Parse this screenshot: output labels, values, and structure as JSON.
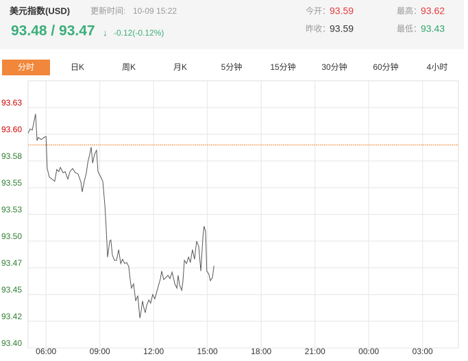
{
  "header": {
    "title": "美元指数(USD)",
    "update_label": "更新时间:",
    "update_time": "10-09 15:22",
    "price": "93.48 / 93.47",
    "arrow": "↓",
    "change": "-0.12(-0.12%)",
    "quotes": [
      {
        "label": "今开：",
        "value": 93.59,
        "color": "#e4393c"
      },
      {
        "label": "最高：",
        "value": 93.62,
        "color": "#e4393c"
      },
      {
        "label": "昨收：",
        "value": 93.59,
        "color": "#333333"
      },
      {
        "label": "最低：",
        "value": 93.43,
        "color": "#2fa46d"
      }
    ]
  },
  "tabs": {
    "items": [
      "分时",
      "日K",
      "周K",
      "月K",
      "5分钟",
      "15分钟",
      "30分钟",
      "60分钟",
      "4小时"
    ],
    "active": 0
  },
  "chart_data": {
    "type": "line",
    "color": "#555555",
    "reference_color": "#f0873a",
    "up_color": "#cc0000",
    "down_color": "#2e7d32",
    "grid": true,
    "xlim": [
      "05:00",
      "05:00"
    ],
    "xticks": [
      "06:00",
      "09:00",
      "12:00",
      "15:00",
      "18:00",
      "21:00",
      "00:00",
      "03:00"
    ],
    "ylim": [
      93.4,
      93.65
    ],
    "yticks": [
      {
        "value": 93.4,
        "label": "93.40"
      },
      {
        "value": 93.425,
        "label": "93.42"
      },
      {
        "value": 93.45,
        "label": "93.45"
      },
      {
        "value": 93.475,
        "label": "93.47"
      },
      {
        "value": 93.5,
        "label": "93.50"
      },
      {
        "value": 93.525,
        "label": "93.53"
      },
      {
        "value": 93.55,
        "label": "93.55"
      },
      {
        "value": 93.575,
        "label": "93.58"
      },
      {
        "value": 93.6,
        "label": "93.60"
      },
      {
        "value": 93.625,
        "label": "93.63"
      }
    ],
    "x": [
      "05:00",
      "05:07",
      "05:14",
      "05:25",
      "05:30",
      "05:34",
      "05:44",
      "05:53",
      "06:00",
      "06:04",
      "06:11",
      "06:20",
      "06:29",
      "06:36",
      "06:43",
      "06:48",
      "06:57",
      "07:04",
      "07:13",
      "07:20",
      "07:29",
      "07:38",
      "07:47",
      "07:57",
      "08:01",
      "08:08",
      "08:15",
      "08:20",
      "08:26",
      "08:31",
      "08:36",
      "08:42",
      "08:49",
      "08:54",
      "09:03",
      "09:10",
      "09:17",
      "09:21",
      "09:26",
      "09:33",
      "09:37",
      "09:42",
      "09:49",
      "09:56",
      "10:03",
      "10:10",
      "10:16",
      "10:23",
      "10:30",
      "10:37",
      "10:42",
      "10:46",
      "10:53",
      "11:00",
      "11:07",
      "11:14",
      "11:18",
      "11:23",
      "11:27",
      "11:32",
      "11:37",
      "11:44",
      "11:50",
      "11:57",
      "12:04",
      "12:11",
      "12:18",
      "12:23",
      "12:27",
      "12:34",
      "12:41",
      "12:48",
      "12:55",
      "13:02",
      "13:06",
      "13:11",
      "13:18",
      "13:22",
      "13:27",
      "13:34",
      "13:38",
      "13:43",
      "13:50",
      "13:57",
      "14:03",
      "14:10",
      "14:17",
      "14:24",
      "14:31",
      "14:38",
      "14:45",
      "14:49",
      "14:54",
      "14:58",
      "15:05",
      "15:10",
      "15:17",
      "15:22"
    ],
    "values": [
      93.601,
      93.605,
      93.604,
      93.619,
      93.594,
      93.597,
      93.595,
      93.597,
      93.598,
      93.568,
      93.56,
      93.558,
      93.556,
      93.567,
      93.565,
      93.569,
      93.564,
      93.565,
      93.558,
      93.565,
      93.568,
      93.564,
      93.563,
      93.555,
      93.546,
      93.556,
      93.564,
      93.574,
      93.581,
      93.588,
      93.573,
      93.581,
      93.585,
      93.565,
      93.56,
      93.556,
      93.533,
      93.514,
      93.485,
      93.5,
      93.501,
      93.487,
      93.482,
      93.482,
      93.492,
      93.479,
      93.483,
      93.479,
      93.48,
      93.476,
      93.463,
      93.456,
      93.46,
      93.444,
      93.449,
      93.428,
      93.434,
      93.444,
      93.438,
      93.433,
      93.44,
      93.445,
      93.442,
      93.45,
      93.446,
      93.453,
      93.46,
      93.465,
      93.472,
      93.464,
      93.466,
      93.468,
      93.465,
      93.471,
      93.466,
      93.46,
      93.456,
      93.468,
      93.459,
      93.454,
      93.462,
      93.482,
      93.479,
      93.485,
      93.48,
      93.492,
      93.483,
      93.5,
      93.495,
      93.472,
      93.504,
      93.514,
      93.509,
      93.472,
      93.469,
      93.463,
      93.466,
      93.477
    ]
  }
}
